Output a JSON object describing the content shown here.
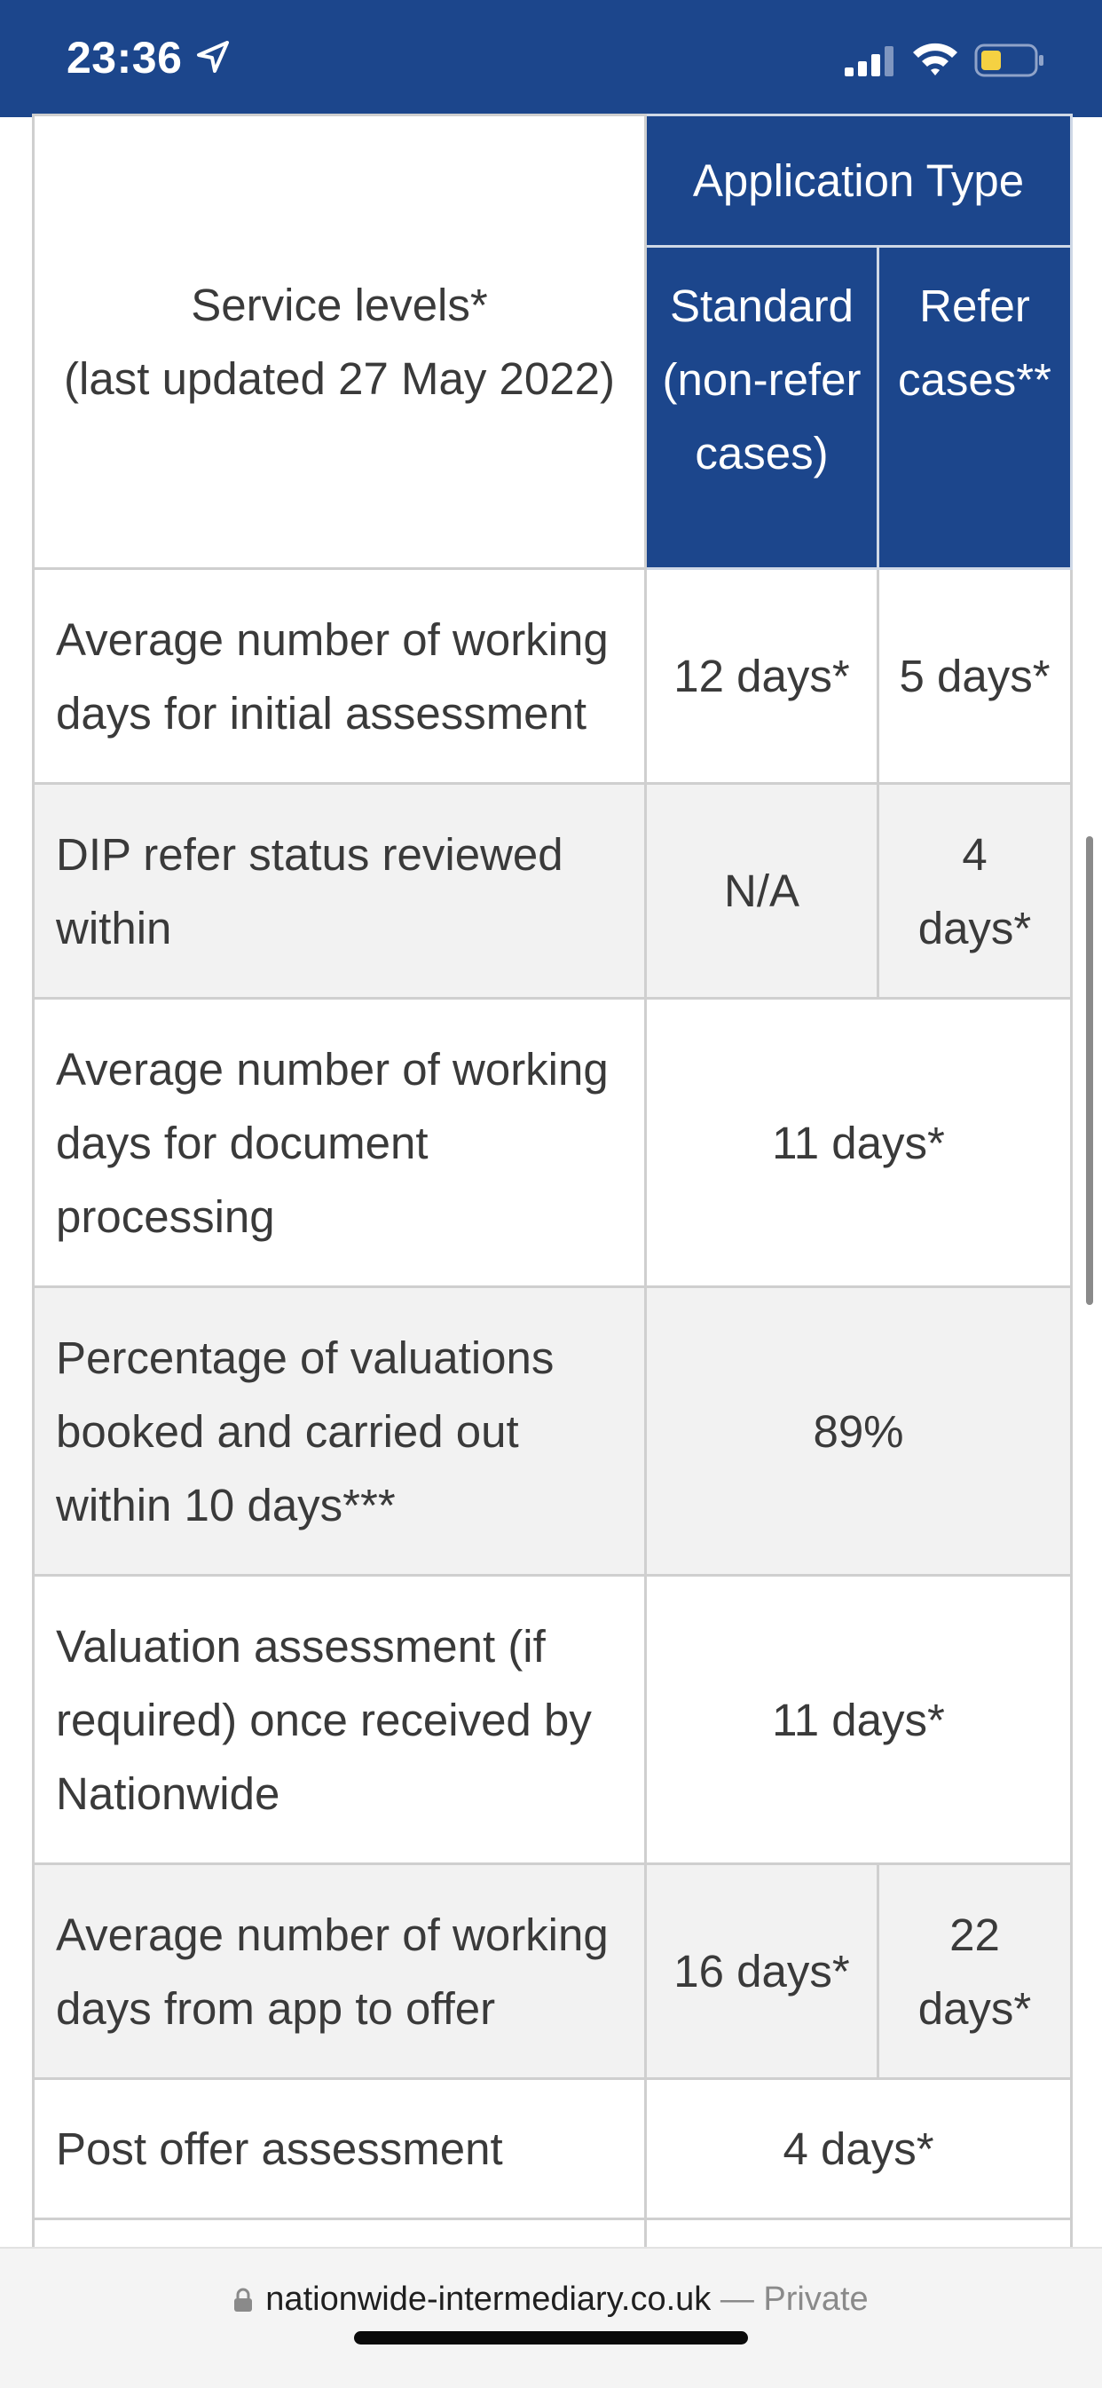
{
  "status_bar": {
    "time": "23:36",
    "icons": [
      "location-arrow-icon",
      "signal-icon",
      "wifi-icon",
      "battery-icon"
    ],
    "battery_color": "#f5d142"
  },
  "colors": {
    "header_blue": "#1c468c",
    "row_grey": "#f2f2f2"
  },
  "table": {
    "corner_line1": "Service levels*",
    "corner_line2": "(last updated 27 May 2022)",
    "group_header": "Application Type",
    "col_standard": "Standard (non-refer cases)",
    "col_refer": "Refer cases**",
    "rows": [
      {
        "label": "Average number of working days for initial assessment",
        "standard": "12 days*",
        "refer": "5 days*"
      },
      {
        "label": "DIP refer status reviewed within",
        "standard": "N/A",
        "refer": "4 days*"
      },
      {
        "label": "Average number of working days for document processing",
        "both": "11 days*"
      },
      {
        "label": "Percentage of valuations booked and carried out within 10 days***",
        "both": "89%"
      },
      {
        "label": "Valuation assessment (if required) once received by Nationwide",
        "both": "11 days*"
      },
      {
        "label": "Average number of working days from app to offer",
        "standard": "16 days*",
        "refer": "22 days*"
      },
      {
        "label": "Post offer assessment",
        "both": "4 days*"
      }
    ]
  },
  "browser": {
    "url": "nationwide-intermediary.co.uk",
    "separator": " — ",
    "privacy": "Private"
  }
}
